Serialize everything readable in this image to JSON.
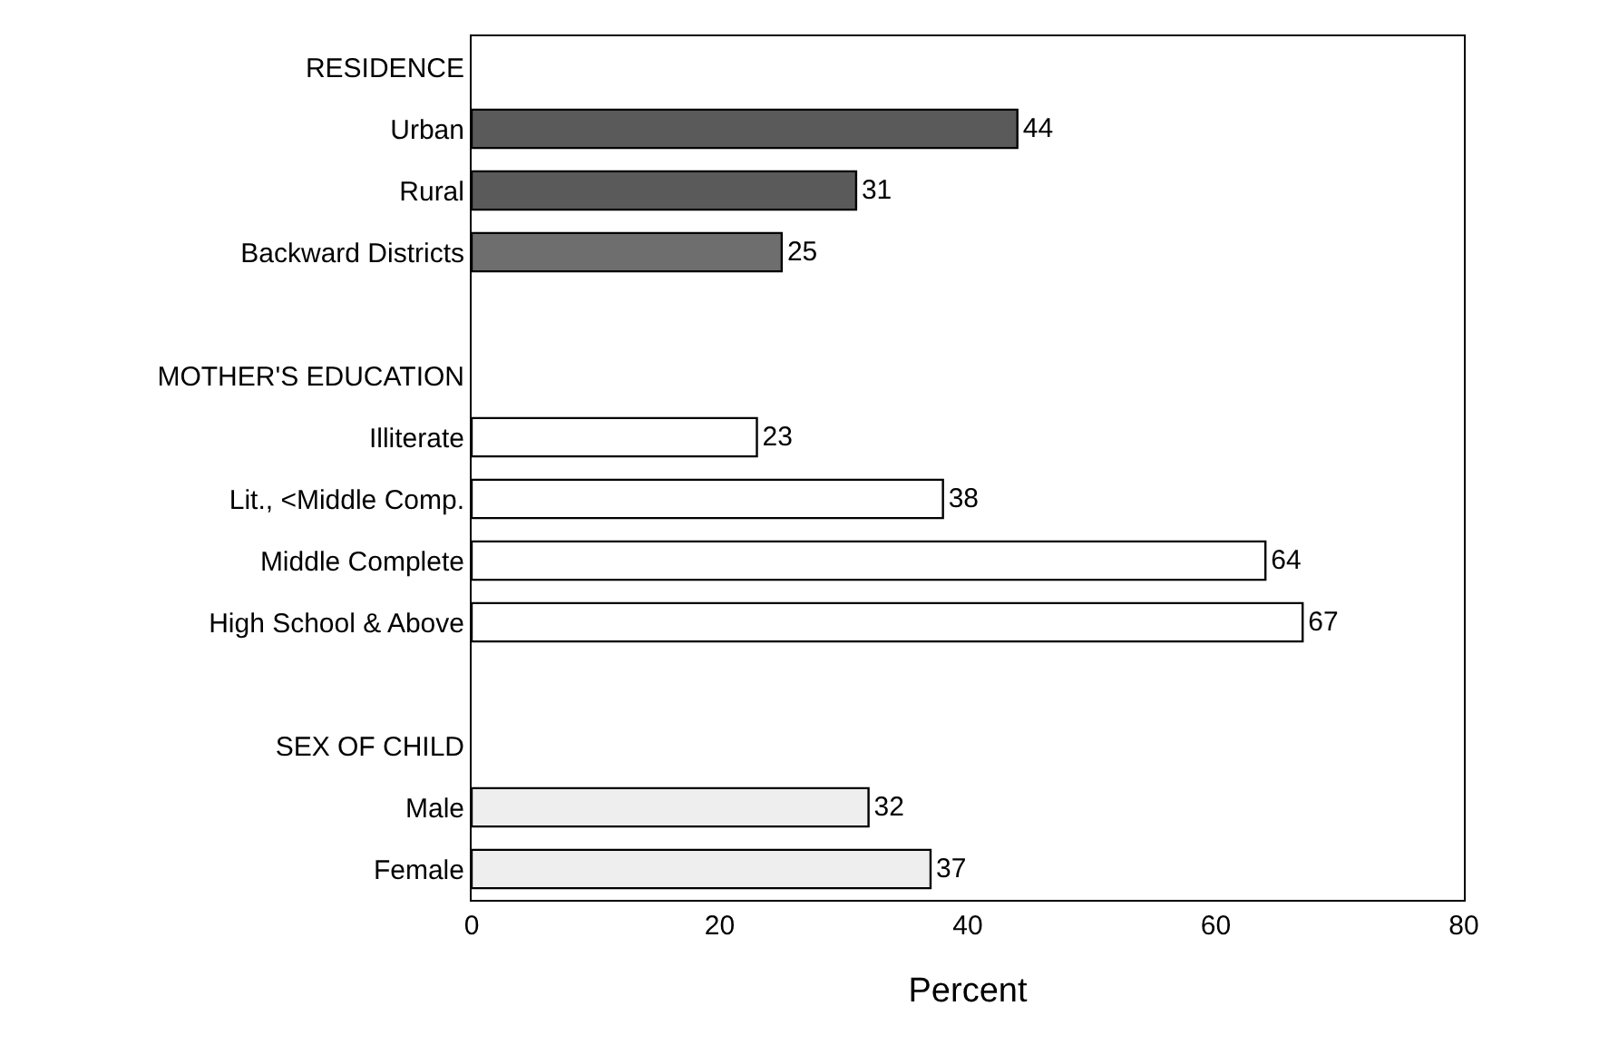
{
  "chart_data": {
    "type": "bar",
    "orientation": "horizontal",
    "categories": [
      "RESIDENCE",
      "Urban",
      "Rural",
      "Backward Districts",
      null,
      "MOTHER'S EDUCATION",
      "Illiterate",
      "Lit., <Middle Comp.",
      "Middle Complete",
      "High School & Above",
      null,
      "SEX OF CHILD",
      "Male",
      "Female"
    ],
    "values": [
      null,
      44,
      31,
      25,
      null,
      null,
      23,
      38,
      64,
      67,
      null,
      null,
      32,
      37
    ],
    "colors": [
      "#ffffff",
      "#5a5a5a",
      "#5a5a5a",
      "#6e6e6e",
      "#ffffff",
      "#ffffff",
      "#ffffff",
      "#ffffff",
      "#ffffff",
      "#ffffff",
      "#ffffff",
      "#ffffff",
      "#eeeeee",
      "#eeeeee"
    ],
    "xlabel": "Percent",
    "xlim": [
      0,
      80
    ],
    "xticks": [
      0,
      20,
      40,
      60,
      80
    ],
    "grid": false,
    "data_labels": true
  }
}
